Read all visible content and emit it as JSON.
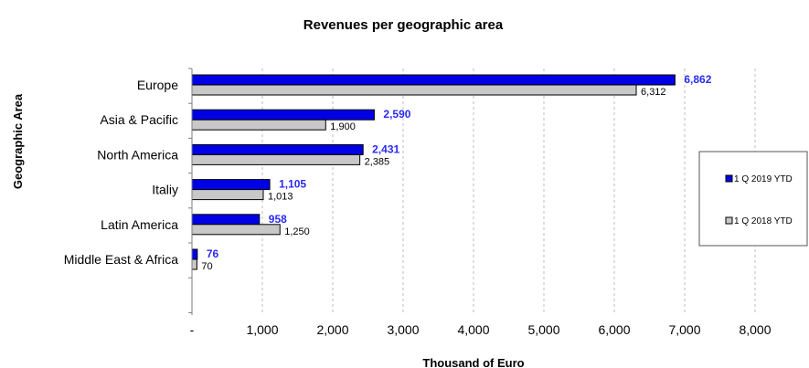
{
  "chart_data": {
    "type": "bar",
    "orientation": "horizontal",
    "title": "Revenues per geographic area",
    "xlabel": "Thousand of Euro",
    "ylabel": "Geographic Area",
    "categories": [
      "Europe",
      "Asia & Pacific",
      "North America",
      "Italiy",
      "Latin America",
      "Middle East & Africa"
    ],
    "series": [
      {
        "name": "1 Q 2019 YTD",
        "color": "#0000e6",
        "label_color": "#2a2af0",
        "values": [
          6862,
          2590,
          2431,
          1105,
          958,
          76
        ],
        "labels": [
          "6,862",
          "2,590",
          "2,431",
          "1,105",
          "958",
          "76"
        ]
      },
      {
        "name": "1 Q 2018 YTD",
        "color": "#c8c8c8",
        "label_color": "#000000",
        "values": [
          6312,
          1900,
          2385,
          1013,
          1250,
          70
        ],
        "labels": [
          "6,312",
          "1,900",
          "2,385",
          "1,013",
          "1,250",
          "70"
        ]
      }
    ],
    "xlim": [
      0,
      8000
    ],
    "xticks": [
      0,
      1000,
      2000,
      3000,
      4000,
      5000,
      6000,
      7000,
      8000
    ],
    "xtick_labels": [
      "-",
      "1,000",
      "2,000",
      "3,000",
      "4,000",
      "5,000",
      "6,000",
      "7,000",
      "8,000"
    ],
    "grid": "vertical-dashed",
    "legend_position": "right"
  }
}
